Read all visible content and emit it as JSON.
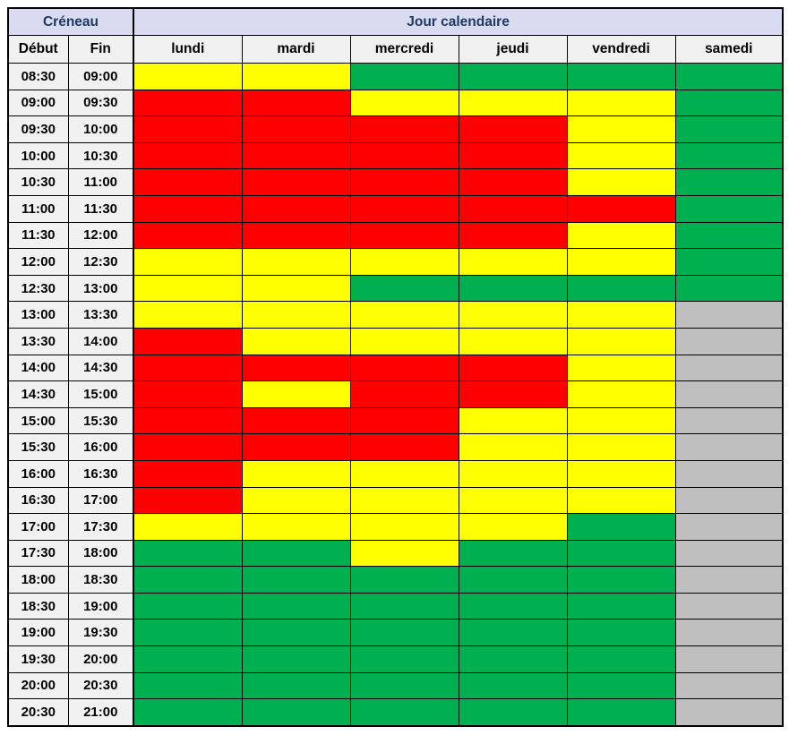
{
  "chart_data": {
    "type": "heatmap",
    "corner_header": "Créneau",
    "group_header": "Jour calendaire",
    "time_headers": [
      "Début",
      "Fin"
    ],
    "day_headers": [
      "lundi",
      "mardi",
      "mercredi",
      "jeudi",
      "vendredi",
      "samedi"
    ],
    "value_colors": {
      "red": "#FF0000",
      "yellow": "#FFFF00",
      "green": "#00B050",
      "gray": "#BFBFBF"
    },
    "rows": [
      {
        "debut": "08:30",
        "fin": "09:00",
        "values": [
          "yellow",
          "yellow",
          "green",
          "green",
          "green",
          "green"
        ]
      },
      {
        "debut": "09:00",
        "fin": "09:30",
        "values": [
          "red",
          "red",
          "yellow",
          "yellow",
          "yellow",
          "green"
        ]
      },
      {
        "debut": "09:30",
        "fin": "10:00",
        "values": [
          "red",
          "red",
          "red",
          "red",
          "yellow",
          "green"
        ]
      },
      {
        "debut": "10:00",
        "fin": "10:30",
        "values": [
          "red",
          "red",
          "red",
          "red",
          "yellow",
          "green"
        ]
      },
      {
        "debut": "10:30",
        "fin": "11:00",
        "values": [
          "red",
          "red",
          "red",
          "red",
          "yellow",
          "green"
        ]
      },
      {
        "debut": "11:00",
        "fin": "11:30",
        "values": [
          "red",
          "red",
          "red",
          "red",
          "red",
          "green"
        ]
      },
      {
        "debut": "11:30",
        "fin": "12:00",
        "values": [
          "red",
          "red",
          "red",
          "red",
          "yellow",
          "green"
        ]
      },
      {
        "debut": "12:00",
        "fin": "12:30",
        "values": [
          "yellow",
          "yellow",
          "yellow",
          "yellow",
          "yellow",
          "green"
        ]
      },
      {
        "debut": "12:30",
        "fin": "13:00",
        "values": [
          "yellow",
          "yellow",
          "green",
          "green",
          "green",
          "green"
        ]
      },
      {
        "debut": "13:00",
        "fin": "13:30",
        "values": [
          "yellow",
          "yellow",
          "yellow",
          "yellow",
          "yellow",
          "gray"
        ]
      },
      {
        "debut": "13:30",
        "fin": "14:00",
        "values": [
          "red",
          "yellow",
          "yellow",
          "yellow",
          "yellow",
          "gray"
        ]
      },
      {
        "debut": "14:00",
        "fin": "14:30",
        "values": [
          "red",
          "red",
          "red",
          "red",
          "yellow",
          "gray"
        ]
      },
      {
        "debut": "14:30",
        "fin": "15:00",
        "values": [
          "red",
          "yellow",
          "red",
          "red",
          "yellow",
          "gray"
        ]
      },
      {
        "debut": "15:00",
        "fin": "15:30",
        "values": [
          "red",
          "red",
          "red",
          "yellow",
          "yellow",
          "gray"
        ]
      },
      {
        "debut": "15:30",
        "fin": "16:00",
        "values": [
          "red",
          "red",
          "red",
          "yellow",
          "yellow",
          "gray"
        ]
      },
      {
        "debut": "16:00",
        "fin": "16:30",
        "values": [
          "red",
          "yellow",
          "yellow",
          "yellow",
          "yellow",
          "gray"
        ]
      },
      {
        "debut": "16:30",
        "fin": "17:00",
        "values": [
          "red",
          "yellow",
          "yellow",
          "yellow",
          "yellow",
          "gray"
        ]
      },
      {
        "debut": "17:00",
        "fin": "17:30",
        "values": [
          "yellow",
          "yellow",
          "yellow",
          "yellow",
          "green",
          "gray"
        ]
      },
      {
        "debut": "17:30",
        "fin": "18:00",
        "values": [
          "green",
          "green",
          "yellow",
          "green",
          "green",
          "gray"
        ]
      },
      {
        "debut": "18:00",
        "fin": "18:30",
        "values": [
          "green",
          "green",
          "green",
          "green",
          "green",
          "gray"
        ]
      },
      {
        "debut": "18:30",
        "fin": "19:00",
        "values": [
          "green",
          "green",
          "green",
          "green",
          "green",
          "gray"
        ]
      },
      {
        "debut": "19:00",
        "fin": "19:30",
        "values": [
          "green",
          "green",
          "green",
          "green",
          "green",
          "gray"
        ]
      },
      {
        "debut": "19:30",
        "fin": "20:00",
        "values": [
          "green",
          "green",
          "green",
          "green",
          "green",
          "gray"
        ]
      },
      {
        "debut": "20:00",
        "fin": "20:30",
        "values": [
          "green",
          "green",
          "green",
          "green",
          "green",
          "gray"
        ]
      },
      {
        "debut": "20:30",
        "fin": "21:00",
        "values": [
          "green",
          "green",
          "green",
          "green",
          "green",
          "gray"
        ]
      }
    ],
    "layout_hints": {
      "header_band_bg": "#D9DCF1",
      "header_band_text": "#1F3864",
      "subheader_bg": "#F1F1F1",
      "grid_border": "#000000"
    }
  }
}
